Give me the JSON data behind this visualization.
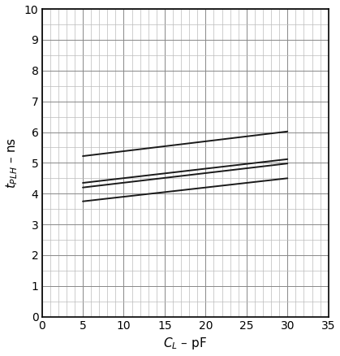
{
  "lines": [
    {
      "x": [
        5,
        30
      ],
      "y": [
        5.22,
        6.02
      ],
      "color": "#1a1a1a",
      "lw": 1.4
    },
    {
      "x": [
        5,
        30
      ],
      "y": [
        4.35,
        5.12
      ],
      "color": "#1a1a1a",
      "lw": 1.4
    },
    {
      "x": [
        5,
        30
      ],
      "y": [
        4.2,
        4.98
      ],
      "color": "#1a1a1a",
      "lw": 1.4
    },
    {
      "x": [
        5,
        30
      ],
      "y": [
        3.75,
        4.5
      ],
      "color": "#1a1a1a",
      "lw": 1.4
    }
  ],
  "xlim": [
    0,
    35
  ],
  "ylim": [
    0,
    10
  ],
  "xticks_major": [
    0,
    5,
    10,
    15,
    20,
    25,
    30,
    35
  ],
  "yticks_major": [
    0,
    1,
    2,
    3,
    4,
    5,
    6,
    7,
    8,
    9,
    10
  ],
  "grid_major_color": "#888888",
  "grid_minor_color": "#bbbbbb",
  "grid_major_lw": 0.7,
  "grid_minor_lw": 0.5,
  "bg_color": "#ffffff",
  "tick_fontsize": 10,
  "label_fontsize": 11
}
